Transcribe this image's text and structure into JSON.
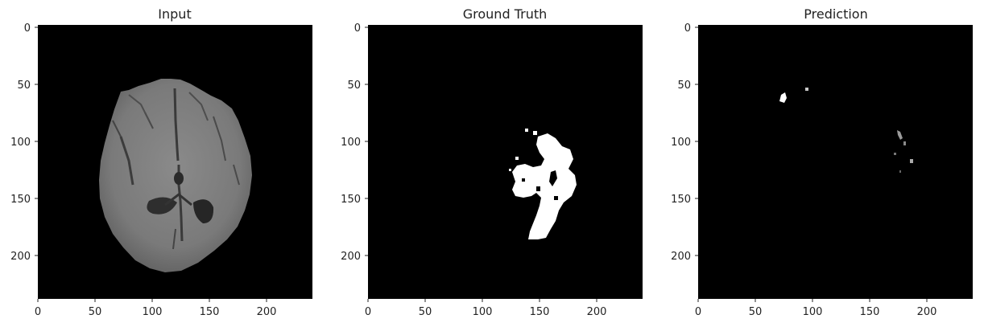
{
  "panels": [
    {
      "title": "Input",
      "x_ticks": [
        "0",
        "50",
        "100",
        "150",
        "200"
      ],
      "y_ticks": [
        "0",
        "50",
        "100",
        "150",
        "200"
      ]
    },
    {
      "title": "Ground Truth",
      "x_ticks": [
        "0",
        "50",
        "100",
        "150",
        "200"
      ],
      "y_ticks": [
        "0",
        "50",
        "100",
        "150",
        "200"
      ]
    },
    {
      "title": "Prediction",
      "x_ticks": [
        "0",
        "50",
        "100",
        "150",
        "200"
      ],
      "y_ticks": [
        "0",
        "50",
        "100",
        "150",
        "200"
      ]
    }
  ],
  "colors": {
    "image_background": "#000000",
    "brain_tissue": "#7c7c7c",
    "ventricle": "#2a2a2a",
    "mask": "#ffffff",
    "axis_text": "#222222"
  }
}
